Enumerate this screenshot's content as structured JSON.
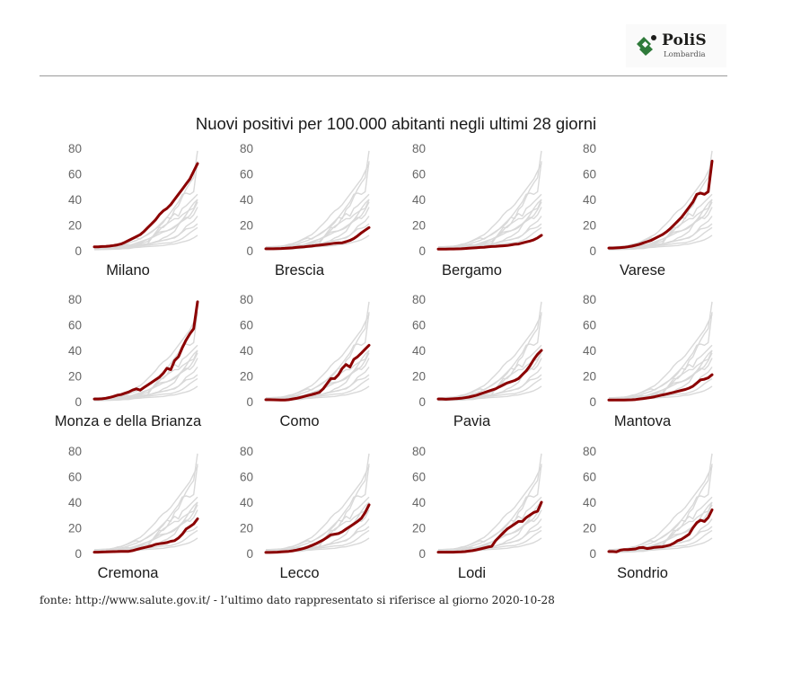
{
  "header": {
    "logo_text": "PoliS",
    "logo_subtext": "Lombardia"
  },
  "colors": {
    "highlight": "#8b0000",
    "background_lines": "#d9d9d9",
    "tick_labels": "#666666",
    "logo_green": "#2f7a3a"
  },
  "chart_data": {
    "type": "line",
    "title": "Nuovi positivi per 100.000 abitanti negli ultimi 28 giorni",
    "xlabel": "",
    "ylabel": "",
    "ylim": [
      0,
      80
    ],
    "yticks": [
      0,
      20,
      40,
      60,
      80
    ],
    "grid": false,
    "days": 28,
    "layout": "small-multiples 4x3",
    "panels": [
      {
        "name": "Milano",
        "values": [
          3,
          3,
          3.2,
          3.4,
          3.6,
          4,
          4.5,
          5.2,
          6.5,
          8,
          9.5,
          11,
          12.5,
          15,
          18,
          21,
          24,
          28,
          31,
          33,
          36,
          40,
          44,
          48,
          52,
          56,
          62,
          68
        ]
      },
      {
        "name": "Brescia",
        "values": [
          1.5,
          1.5,
          1.5,
          1.6,
          1.7,
          1.8,
          2,
          2.2,
          2.5,
          2.8,
          3,
          3.3,
          3.6,
          4,
          4.3,
          4.6,
          5,
          5.4,
          5.8,
          6,
          6.2,
          7,
          8,
          9.5,
          11.5,
          14,
          16,
          18
        ]
      },
      {
        "name": "Bergamo",
        "values": [
          1.2,
          1.2,
          1.2,
          1.3,
          1.3,
          1.4,
          1.5,
          1.7,
          1.9,
          2.1,
          2.3,
          2.5,
          2.7,
          3,
          3.2,
          3.4,
          3.6,
          3.8,
          4,
          4.5,
          5,
          5.2,
          6,
          6.8,
          7.5,
          8.5,
          10,
          12
        ]
      },
      {
        "name": "Varese",
        "values": [
          2,
          2,
          2.2,
          2.4,
          2.6,
          3,
          3.5,
          4.2,
          5,
          6,
          7,
          8,
          9.5,
          11,
          12.5,
          14.5,
          17,
          20,
          23,
          26,
          30,
          34,
          38,
          44,
          45,
          44,
          46,
          70
        ]
      },
      {
        "name": "Monza e della Brianza",
        "values": [
          2,
          2,
          2.2,
          2.6,
          3.2,
          4,
          5,
          5.5,
          6.5,
          7.5,
          9,
          10,
          9,
          11,
          13,
          15,
          17,
          19,
          22,
          26,
          25,
          32,
          35,
          42,
          48,
          53,
          57,
          78
        ]
      },
      {
        "name": "Como",
        "values": [
          1.5,
          1.5,
          1.4,
          1.3,
          1.2,
          1.2,
          1.5,
          2,
          2.5,
          3.2,
          4,
          4.8,
          5.5,
          6.3,
          7.2,
          10,
          14,
          18,
          18,
          21,
          26,
          29,
          27,
          33,
          35,
          38,
          41,
          44
        ]
      },
      {
        "name": "Pavia",
        "values": [
          2,
          2,
          1.8,
          2,
          2.2,
          2.4,
          2.6,
          3,
          3.5,
          4.2,
          5,
          6,
          7,
          8,
          9,
          10,
          11.5,
          13,
          14.5,
          15.5,
          16.5,
          18,
          21,
          24,
          28,
          33,
          37,
          40
        ]
      },
      {
        "name": "Mantova",
        "values": [
          1.2,
          1.2,
          1.2,
          1.2,
          1.2,
          1.3,
          1.4,
          1.6,
          2,
          2.4,
          2.8,
          3.2,
          3.8,
          4.5,
          5.2,
          5.8,
          6.5,
          7.2,
          8,
          8.8,
          9.5,
          10.5,
          12,
          14.5,
          17,
          17.5,
          18.5,
          21
        ]
      },
      {
        "name": "Cremona",
        "values": [
          1,
          1,
          1.1,
          1.2,
          1.3,
          1.4,
          1.5,
          1.6,
          1.6,
          1.6,
          2.2,
          3,
          3.8,
          4.5,
          5.2,
          6,
          7,
          7.6,
          8,
          8.5,
          9.5,
          10,
          12,
          15,
          19,
          21,
          23,
          27
        ]
      },
      {
        "name": "Lecco",
        "values": [
          0.8,
          0.8,
          0.9,
          1,
          1.2,
          1.4,
          1.6,
          2,
          2.6,
          3.2,
          4,
          5,
          6.2,
          7.5,
          9,
          10.5,
          12.5,
          14.5,
          15,
          15.5,
          17,
          19,
          21,
          23,
          25,
          27.5,
          32,
          38
        ]
      },
      {
        "name": "Lodi",
        "values": [
          1,
          1,
          1,
          1,
          1,
          1.1,
          1.2,
          1.4,
          1.8,
          2.2,
          2.8,
          3.5,
          4.2,
          5,
          5.5,
          10,
          13,
          16,
          19,
          21,
          23,
          25,
          25,
          28,
          30,
          32,
          33,
          40
        ]
      },
      {
        "name": "Sondrio",
        "values": [
          1.5,
          1.5,
          1.2,
          2.5,
          3,
          3,
          3.2,
          3.5,
          4.5,
          4.6,
          3.8,
          4.2,
          4.8,
          5,
          5.2,
          5.8,
          6.5,
          8,
          10,
          11,
          13,
          15,
          20,
          24,
          26,
          25,
          28,
          34
        ]
      }
    ]
  },
  "footer": {
    "source": "fonte: http://www.salute.gov.it/ - l’ultimo dato rappresentato si riferisce al giorno 2020-10-28"
  }
}
